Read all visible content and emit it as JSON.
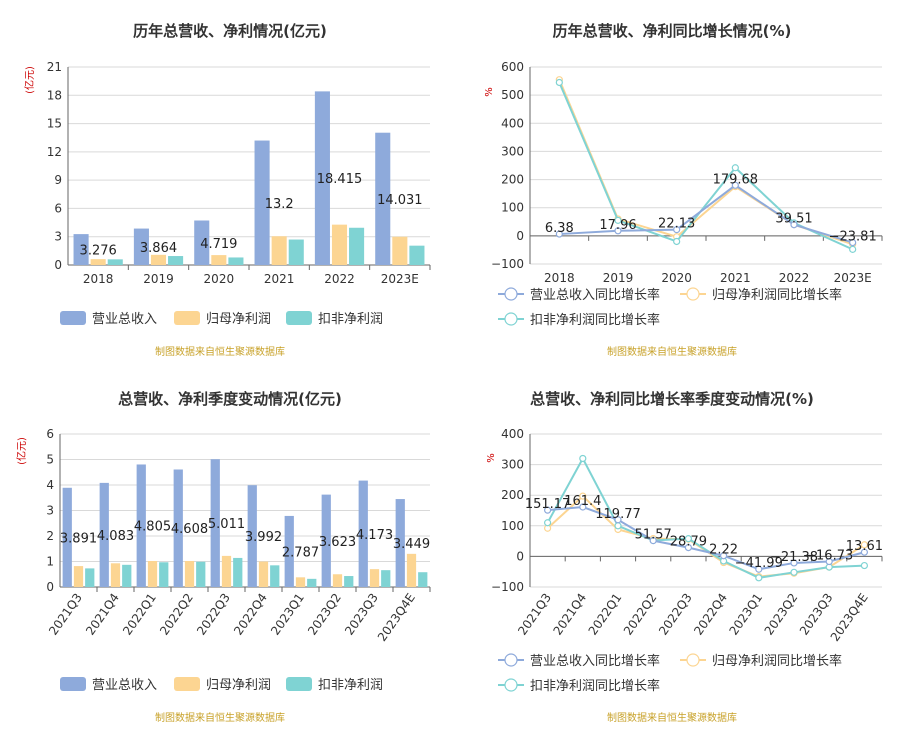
{
  "colors": {
    "revenue": "#8eaadb",
    "netprofit": "#fcd592",
    "deducted": "#7fd3d3",
    "axis": "#666666",
    "grid": "#d9d9d9",
    "unit": "#cc0000",
    "source": "#c8a22a",
    "title": "#333333",
    "label": "#222222"
  },
  "source_text": "制图数据来自恒生聚源数据库",
  "chart_data": [
    {
      "type": "bar",
      "title": "历年总营收、净利情况(亿元)",
      "ylabel": "(亿元)",
      "ylim": [
        0,
        21
      ],
      "yticks": [
        "0",
        "3",
        "6",
        "9",
        "12",
        "15",
        "18",
        "21"
      ],
      "categories": [
        "2018",
        "2019",
        "2020",
        "2021",
        "2022",
        "2023E"
      ],
      "series": [
        {
          "name": "营业总收入",
          "values": [
            3.276,
            3.864,
            4.719,
            13.2,
            18.415,
            14.031
          ]
        },
        {
          "name": "归母净利润",
          "values": [
            0.62,
            1.08,
            1.05,
            3.05,
            4.28,
            3.0
          ]
        },
        {
          "name": "扣非净利润",
          "values": [
            0.6,
            0.95,
            0.8,
            2.7,
            3.95,
            2.05
          ]
        }
      ],
      "data_labels": [
        "3.276",
        "3.864",
        "4.719",
        "13.2",
        "18.415",
        "14.031"
      ],
      "legend": "bottom"
    },
    {
      "type": "line",
      "title": "历年总营收、净利同比增长情况(%)",
      "ylabel": "%",
      "ylim": [
        -100,
        600
      ],
      "yticks": [
        "−100",
        "0",
        "100",
        "200",
        "300",
        "400",
        "500",
        "600"
      ],
      "categories": [
        "2018",
        "2019",
        "2020",
        "2021",
        "2022",
        "2023E"
      ],
      "series": [
        {
          "name": "营业总收入同比增长率",
          "values": [
            6.38,
            17.96,
            22.13,
            179.68,
            39.51,
            -23.81
          ]
        },
        {
          "name": "归母净利润同比增长率",
          "values": [
            555,
            60,
            -3,
            175,
            40,
            -30
          ]
        },
        {
          "name": "扣非净利润同比增长率",
          "values": [
            545,
            55,
            -20,
            242,
            46,
            -48
          ]
        }
      ],
      "data_labels": [
        "6.38",
        "17.96",
        "22.13",
        "179.68",
        "39.51",
        "−23.81"
      ],
      "legend": "bottom"
    },
    {
      "type": "bar",
      "title": "总营收、净利季度变动情况(亿元)",
      "ylabel": "(亿元)",
      "ylim": [
        0,
        6
      ],
      "yticks": [
        "0",
        "1",
        "2",
        "3",
        "4",
        "5",
        "6"
      ],
      "categories": [
        "2021Q3",
        "2021Q4",
        "2022Q1",
        "2022Q2",
        "2022Q3",
        "2022Q4",
        "2023Q1",
        "2023Q2",
        "2023Q3",
        "2023Q4E"
      ],
      "series": [
        {
          "name": "营业总收入",
          "values": [
            3.891,
            4.083,
            4.805,
            4.608,
            5.011,
            3.992,
            2.787,
            3.623,
            4.173,
            3.449
          ]
        },
        {
          "name": "归母净利润",
          "values": [
            0.82,
            0.93,
            1.02,
            1.02,
            1.22,
            1.0,
            0.38,
            0.5,
            0.7,
            1.3
          ]
        },
        {
          "name": "扣非净利润",
          "values": [
            0.73,
            0.87,
            0.97,
            0.99,
            1.14,
            0.85,
            0.32,
            0.43,
            0.66,
            0.58
          ]
        }
      ],
      "data_labels": [
        "3.891",
        "4.083",
        "4.805",
        "4.608",
        "5.011",
        "3.992",
        "2.787",
        "3.623",
        "4.173",
        "3.449"
      ],
      "legend": "bottom"
    },
    {
      "type": "line",
      "title": "总营收、净利同比增长率季度变动情况(%)",
      "ylabel": "%",
      "ylim": [
        -100,
        400
      ],
      "yticks": [
        "−100",
        "0",
        "100",
        "200",
        "300",
        "400"
      ],
      "categories": [
        "2021Q3",
        "2021Q4",
        "2022Q1",
        "2022Q2",
        "2022Q3",
        "2022Q4",
        "2023Q1",
        "2023Q2",
        "2023Q3",
        "2023Q4E"
      ],
      "series": [
        {
          "name": "营业总收入同比增长率",
          "values": [
            151.17,
            161.4,
            119.77,
            51.57,
            28.79,
            2.22,
            -41.99,
            -21.38,
            -16.73,
            13.61
          ]
        },
        {
          "name": "归母净利润同比增长率",
          "values": [
            92,
            197,
            88,
            58,
            56,
            -20,
            -66,
            -55,
            -35,
            38
          ]
        },
        {
          "name": "扣非净利润同比增长率",
          "values": [
            110,
            320,
            100,
            52,
            58,
            -15,
            -70,
            -52,
            -35,
            -30
          ]
        }
      ],
      "data_labels": [
        "151.17",
        "161.4",
        "119.77",
        "51.57",
        "28.79",
        "2.22",
        "−41.99",
        "−21.38",
        "−16.73",
        "13.61"
      ],
      "legend": "bottom"
    }
  ]
}
